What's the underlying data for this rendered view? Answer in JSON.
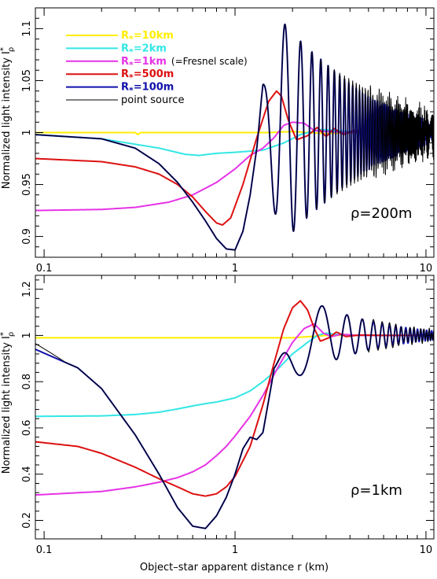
{
  "chart_data": [
    {
      "type": "line",
      "panel": "top",
      "xscale": "log",
      "xlim": [
        0.09,
        11
      ],
      "ylim": [
        0.88,
        1.12
      ],
      "yticks": [
        0.9,
        0.95,
        1,
        1.05,
        1.1
      ],
      "yticklabels": [
        "0.9",
        "0.95",
        "1",
        "1.05",
        "1.1"
      ],
      "xticks": [
        0.1,
        1,
        10
      ],
      "xticklabels": [
        "0.1",
        "1",
        "10"
      ],
      "ylabel": "Normalized light intensity I",
      "ylabel_sup": "*",
      "ylabel_sub": "ρ",
      "annotation": "ρ=200m",
      "legend": [
        {
          "label": "R",
          "sub": "*",
          "suffix": "=10km",
          "color": "#ffee00"
        },
        {
          "label": "R",
          "sub": "*",
          "suffix": "=2km",
          "color": "#33e6e6"
        },
        {
          "label": "R",
          "sub": "*",
          "suffix": "=1km",
          "note": "(=Fresnel scale)",
          "color": "#e633e6"
        },
        {
          "label": "R",
          "sub": "*",
          "suffix": "=500m",
          "color": "#dd1111"
        },
        {
          "label": "R",
          "sub": "*",
          "suffix": "=100m",
          "color": "#1111aa"
        },
        {
          "label": "point source",
          "color": "#000000"
        }
      ],
      "series": [
        {
          "name": "R*=10km",
          "color": "#ffee00",
          "x": [
            0.09,
            0.3,
            0.31,
            0.32,
            1.5,
            2.0,
            3.0,
            5.0,
            11
          ],
          "y": [
            1.0,
            1.0,
            0.998,
            1.0,
            1.0,
            1.001,
            0.999,
            1.0,
            1.0
          ]
        },
        {
          "name": "R*=2km",
          "color": "#33e6e6",
          "x": [
            0.09,
            0.2,
            0.4,
            0.55,
            0.65,
            0.8,
            1.0,
            1.4,
            1.8,
            2.2,
            2.8,
            4.0,
            6.0,
            11
          ],
          "y": [
            0.998,
            0.994,
            0.985,
            0.979,
            0.978,
            0.98,
            0.981,
            0.983,
            0.99,
            0.998,
            1.003,
            1.001,
            1.0,
            1.0
          ]
        },
        {
          "name": "R*=1km",
          "color": "#e633e6",
          "x": [
            0.09,
            0.2,
            0.3,
            0.45,
            0.6,
            0.8,
            1.0,
            1.2,
            1.4,
            1.6,
            1.8,
            2.0,
            2.3,
            2.6,
            3.0,
            4.0,
            6.0,
            11
          ],
          "y": [
            0.925,
            0.926,
            0.928,
            0.933,
            0.94,
            0.952,
            0.965,
            0.978,
            0.985,
            0.995,
            1.007,
            1.01,
            1.009,
            1.002,
            1.001,
            1.0,
            1.0,
            1.0
          ]
        },
        {
          "name": "R*=500m",
          "color": "#dd1111",
          "x": [
            0.09,
            0.2,
            0.3,
            0.4,
            0.5,
            0.6,
            0.7,
            0.8,
            0.86,
            0.95,
            1.1,
            1.3,
            1.5,
            1.65,
            1.75,
            1.9,
            2.1,
            2.4,
            2.7,
            3.0,
            3.3,
            3.7,
            4.2,
            5.0,
            7.0,
            11
          ],
          "y": [
            0.975,
            0.972,
            0.967,
            0.96,
            0.95,
            0.938,
            0.924,
            0.913,
            0.911,
            0.918,
            0.95,
            0.995,
            1.03,
            1.04,
            1.035,
            1.012,
            0.993,
            0.997,
            1.005,
            0.996,
            1.004,
            0.998,
            1.002,
            1.0,
            1.0,
            1.0
          ]
        },
        {
          "name": "R*=100m",
          "color": "#1111aa",
          "model": "top-blue"
        },
        {
          "name": "point source",
          "color": "#000000",
          "model": "top-black"
        }
      ]
    },
    {
      "type": "line",
      "panel": "bottom",
      "xscale": "log",
      "xlim": [
        0.09,
        11
      ],
      "ylim": [
        0.12,
        1.26
      ],
      "yticks": [
        0.2,
        0.4,
        0.6,
        0.8,
        1,
        1.2
      ],
      "yticklabels": [
        "0.2",
        "0.4",
        "0.6",
        "0.8",
        "1",
        "1.2"
      ],
      "xticks": [
        0.1,
        1,
        10
      ],
      "xticklabels": [
        "0.1",
        "1",
        "10"
      ],
      "ylabel": "Normalized light intensity I",
      "ylabel_sup": "*",
      "ylabel_sub": "ρ",
      "xlabel": "Object–star apparent distance r (km)",
      "annotation": "ρ=1km",
      "series": [
        {
          "name": "R*=10km",
          "color": "#ffee00",
          "x": [
            0.09,
            0.5,
            1.0,
            2.0,
            3.0,
            5.0,
            11
          ],
          "y": [
            0.99,
            0.99,
            0.99,
            0.99,
            1.0,
            1.0,
            1.0
          ]
        },
        {
          "name": "R*=2km",
          "color": "#33e6e6",
          "x": [
            0.09,
            0.2,
            0.3,
            0.4,
            0.5,
            0.6,
            0.7,
            0.8,
            1.0,
            1.2,
            1.4,
            1.7,
            2.0,
            2.4,
            2.7,
            3.0,
            3.5,
            4.5,
            11
          ],
          "y": [
            0.65,
            0.652,
            0.658,
            0.668,
            0.682,
            0.695,
            0.705,
            0.712,
            0.73,
            0.76,
            0.8,
            0.86,
            0.92,
            0.97,
            1.0,
            1.01,
            1.003,
            1.0,
            1.0
          ]
        },
        {
          "name": "R*=1km",
          "color": "#e633e6",
          "x": [
            0.09,
            0.2,
            0.3,
            0.4,
            0.5,
            0.6,
            0.7,
            0.8,
            0.9,
            1.0,
            1.2,
            1.4,
            1.7,
            2.0,
            2.3,
            2.6,
            2.9,
            3.2,
            3.6,
            4.5,
            11
          ],
          "y": [
            0.31,
            0.325,
            0.345,
            0.365,
            0.385,
            0.41,
            0.44,
            0.48,
            0.52,
            0.565,
            0.65,
            0.74,
            0.87,
            0.97,
            1.03,
            1.05,
            1.01,
            0.995,
            1.005,
            1.0,
            1.0
          ]
        },
        {
          "name": "R*=500m",
          "color": "#dd1111",
          "x": [
            0.09,
            0.15,
            0.2,
            0.3,
            0.4,
            0.5,
            0.6,
            0.7,
            0.8,
            0.9,
            1.0,
            1.2,
            1.4,
            1.6,
            1.8,
            2.0,
            2.2,
            2.4,
            2.6,
            2.8,
            3.1,
            3.4,
            3.8,
            4.5,
            6.0,
            11
          ],
          "y": [
            0.54,
            0.52,
            0.49,
            0.43,
            0.38,
            0.345,
            0.315,
            0.305,
            0.315,
            0.345,
            0.39,
            0.52,
            0.7,
            0.88,
            1.03,
            1.12,
            1.15,
            1.11,
            1.03,
            0.975,
            0.99,
            1.015,
            0.995,
            1.002,
            1.0,
            1.0
          ]
        },
        {
          "name": "R*=100m",
          "color": "#1111aa",
          "model": "bottom-blue"
        },
        {
          "name": "point source",
          "color": "#000000",
          "model": "bottom-black"
        }
      ]
    }
  ]
}
